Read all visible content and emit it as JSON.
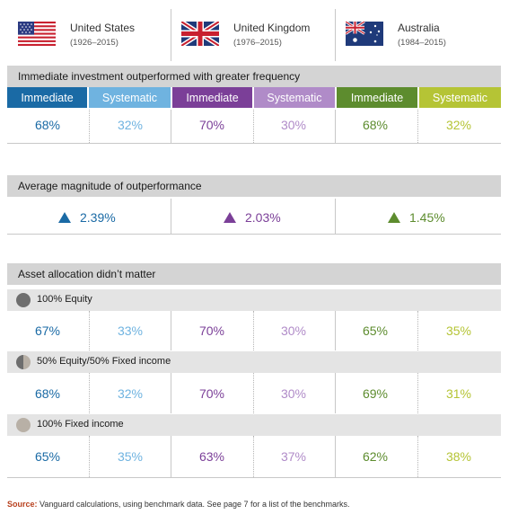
{
  "countries": [
    {
      "name": "United States",
      "years": "(1926–2015)",
      "flag": "us-flag"
    },
    {
      "name": "United Kingdom",
      "years": "(1976–2015)",
      "flag": "uk-flag"
    },
    {
      "name": "Australia",
      "years": "(1984–2015)",
      "flag": "australia-flag"
    }
  ],
  "colors": {
    "us_immediate": "#1a6aa5",
    "us_systematic": "#6fb3e0",
    "uk_immediate": "#7b3f98",
    "uk_systematic": "#b08bc8",
    "au_immediate": "#5d8c2e",
    "au_systematic": "#b5c435"
  },
  "sections": {
    "frequency_title": "Immediate investment outperformed with greater frequency",
    "magnitude_title": "Average magnitude of outperformance",
    "allocation_title": "Asset allocation didn’t matter"
  },
  "legend": {
    "immediate": "Immediate",
    "systematic": "Systematic"
  },
  "chart_data": {
    "type": "table",
    "frequency": [
      {
        "country": "United States",
        "immediate": "68%",
        "systematic": "32%"
      },
      {
        "country": "United Kingdom",
        "immediate": "70%",
        "systematic": "30%"
      },
      {
        "country": "Australia",
        "immediate": "68%",
        "systematic": "32%"
      }
    ],
    "magnitude": [
      {
        "country": "United States",
        "value": "2.39%"
      },
      {
        "country": "United Kingdom",
        "value": "2.03%"
      },
      {
        "country": "Australia",
        "value": "1.45%"
      }
    ],
    "allocation": [
      {
        "label": "100% Equity",
        "values": [
          [
            "67%",
            "33%"
          ],
          [
            "70%",
            "30%"
          ],
          [
            "65%",
            "35%"
          ]
        ]
      },
      {
        "label": "50% Equity/50% Fixed income",
        "values": [
          [
            "68%",
            "32%"
          ],
          [
            "70%",
            "30%"
          ],
          [
            "69%",
            "31%"
          ]
        ]
      },
      {
        "label": "100% Fixed income",
        "values": [
          [
            "65%",
            "35%"
          ],
          [
            "63%",
            "37%"
          ],
          [
            "62%",
            "38%"
          ]
        ]
      }
    ]
  },
  "source": {
    "label": "Source:",
    "text": " Vanguard calculations, using benchmark data. See page 7 for a list of the benchmarks."
  }
}
